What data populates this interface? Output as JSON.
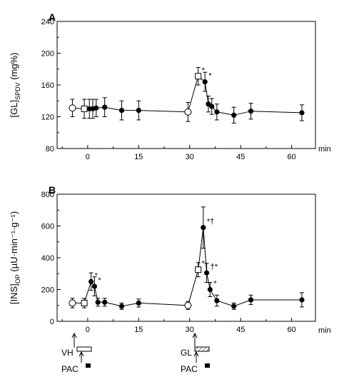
{
  "chart_data": [
    {
      "panel": "A",
      "type": "line",
      "ylabel": {
        "main": "[GL]",
        "sub": "SPDV",
        "unit": " (mg%)"
      },
      "x_unit": "min",
      "xlim": [
        -9,
        67
      ],
      "ylim": [
        80,
        240
      ],
      "yticks": [
        80,
        120,
        160,
        200,
        240
      ],
      "xticks": [
        0,
        15,
        30,
        45,
        60
      ],
      "points": [
        {
          "x": -4.5,
          "y": 131,
          "err": 11,
          "marker": "open-circle"
        },
        {
          "x": -1,
          "y": 130,
          "err": 12,
          "marker": "open-square"
        },
        {
          "x": 0.5,
          "y": 130,
          "err": 12,
          "marker": "filled-circle"
        },
        {
          "x": 1.5,
          "y": 130,
          "err": 12,
          "marker": "filled-circle"
        },
        {
          "x": 2.5,
          "y": 131,
          "err": 11,
          "marker": "filled-circle"
        },
        {
          "x": 5,
          "y": 132,
          "err": 12,
          "marker": "filled-circle"
        },
        {
          "x": 10,
          "y": 128,
          "err": 12,
          "marker": "filled-circle"
        },
        {
          "x": 15,
          "y": 128,
          "err": 12,
          "marker": "filled-circle"
        },
        {
          "x": 29.5,
          "y": 126,
          "err": 12,
          "marker": "open-circle"
        },
        {
          "x": 32.5,
          "y": 171,
          "err": 11,
          "marker": "open-square",
          "annot": "*"
        },
        {
          "x": 34.5,
          "y": 164,
          "err": 12,
          "marker": "filled-circle",
          "annot": "*"
        },
        {
          "x": 35.5,
          "y": 136,
          "err": 10,
          "marker": "filled-circle"
        },
        {
          "x": 36.5,
          "y": 133,
          "err": 10,
          "marker": "filled-circle"
        },
        {
          "x": 38,
          "y": 126,
          "err": 10,
          "marker": "filled-circle"
        },
        {
          "x": 43,
          "y": 122,
          "err": 10,
          "marker": "filled-circle"
        },
        {
          "x": 48,
          "y": 127,
          "err": 10,
          "marker": "filled-circle"
        },
        {
          "x": 63,
          "y": 125,
          "err": 10,
          "marker": "filled-circle"
        }
      ]
    },
    {
      "panel": "B",
      "type": "line",
      "ylabel": {
        "main": "[INS]",
        "sub": "OP",
        "unit": " (µU·min⁻¹·g⁻¹)"
      },
      "x_unit": "min",
      "xlim": [
        -9,
        67
      ],
      "ylim": [
        0,
        800
      ],
      "yticks": [
        0,
        200,
        400,
        600,
        800
      ],
      "xticks": [
        0,
        15,
        30,
        45,
        60
      ],
      "points": [
        {
          "x": -4.5,
          "y": 115,
          "err": 30,
          "marker": "open-circle"
        },
        {
          "x": -1,
          "y": 115,
          "err": 30,
          "marker": "open-square"
        },
        {
          "x": 1,
          "y": 250,
          "err": 55,
          "marker": "filled-circle",
          "annot": "*"
        },
        {
          "x": 2,
          "y": 220,
          "err": 60,
          "marker": "filled-circle",
          "annot": "*"
        },
        {
          "x": 3,
          "y": 120,
          "err": 25,
          "marker": "filled-circle"
        },
        {
          "x": 5,
          "y": 120,
          "err": 25,
          "marker": "filled-circle"
        },
        {
          "x": 10,
          "y": 95,
          "err": 20,
          "marker": "filled-circle"
        },
        {
          "x": 15,
          "y": 115,
          "err": 25,
          "marker": "filled-circle"
        },
        {
          "x": 29.5,
          "y": 100,
          "err": 25,
          "marker": "open-circle"
        },
        {
          "x": 32.5,
          "y": 325,
          "err": 45,
          "marker": "open-square",
          "annot": "*"
        },
        {
          "x": 34,
          "y": 590,
          "err": 130,
          "marker": "filled-circle",
          "annot": "*†"
        },
        {
          "x": 35,
          "y": 305,
          "err": 60,
          "marker": "filled-circle",
          "annot": "†*"
        },
        {
          "x": 36,
          "y": 200,
          "err": 45,
          "marker": "filled-circle",
          "annot": "*"
        },
        {
          "x": 38,
          "y": 130,
          "err": 35,
          "marker": "filled-circle"
        },
        {
          "x": 43,
          "y": 95,
          "err": 20,
          "marker": "filled-circle"
        },
        {
          "x": 48,
          "y": 135,
          "err": 30,
          "marker": "filled-circle"
        },
        {
          "x": 63,
          "y": 135,
          "err": 45,
          "marker": "filled-circle"
        }
      ]
    }
  ],
  "treatments": {
    "first": {
      "infusion_label": "VH",
      "bolus_label": "PAC",
      "x": 0
    },
    "second": {
      "infusion_label": "GL",
      "bolus_label": "PAC",
      "x": 30
    }
  }
}
